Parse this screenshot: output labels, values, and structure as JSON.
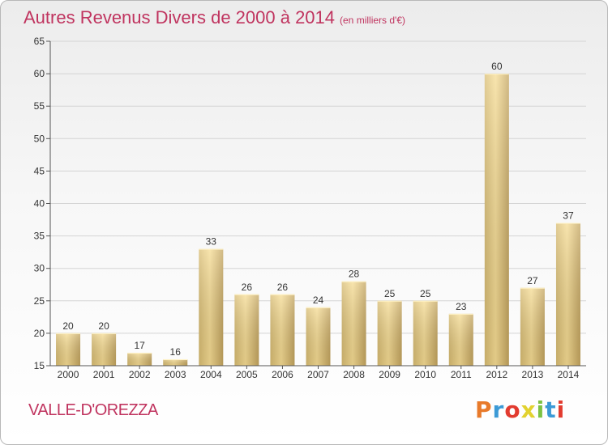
{
  "header": {
    "title": "Autres Revenus Divers de 2000 à 2014",
    "unit": "(en milliers d'€)"
  },
  "footer": {
    "commune": "VALLE-D'OREZZA",
    "brand": "Proxiti",
    "brand_colors": [
      "#e87a2a",
      "#3c9ad6",
      "#e23b2f",
      "#e2d22f",
      "#7cc242",
      "#3c9ad6",
      "#e23b2f"
    ]
  },
  "colors": {
    "title": "#c0345f",
    "bar_light": "#f6dc93",
    "bar_dark": "#c3a45e",
    "grid": "#d4d4d4",
    "axis": "#555555"
  },
  "chart_data": {
    "type": "bar",
    "title": "Autres Revenus Divers de 2000 à 2014",
    "subtitle": "(en milliers d'€)",
    "categories": [
      "2000",
      "2001",
      "2002",
      "2003",
      "2004",
      "2005",
      "2006",
      "2007",
      "2008",
      "2009",
      "2010",
      "2011",
      "2012",
      "2013",
      "2014"
    ],
    "values": [
      20,
      20,
      17,
      16,
      33,
      26,
      26,
      24,
      28,
      25,
      25,
      23,
      60,
      27,
      37
    ],
    "ylim": [
      15,
      65
    ],
    "yticks": [
      15,
      20,
      25,
      30,
      35,
      40,
      45,
      50,
      55,
      60,
      65
    ],
    "grid": true,
    "xlabel": "",
    "ylabel": ""
  }
}
